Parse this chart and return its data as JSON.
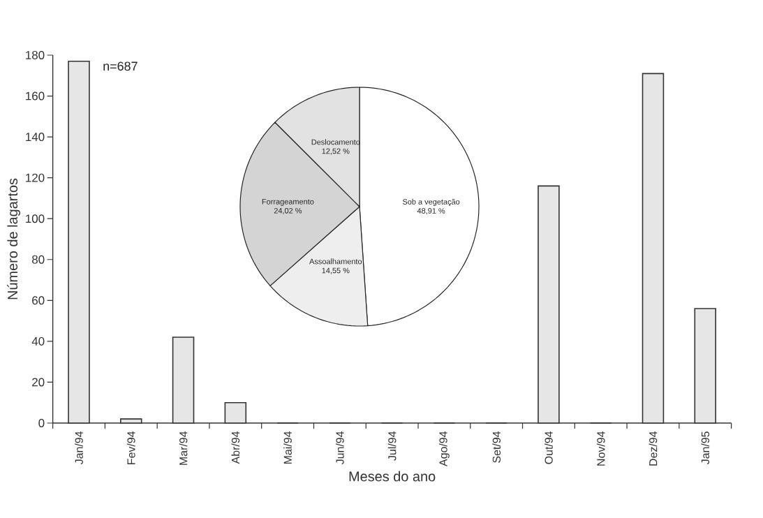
{
  "chart_data": [
    {
      "type": "bar",
      "xlabel": "Meses do ano",
      "ylabel": "Número de lagartos",
      "categories": [
        "Jan/94",
        "Fev/94",
        "Mar/94",
        "Abr/94",
        "Mai/94",
        "Jun/94",
        "Jul/94",
        "Ago/94",
        "Set/94",
        "Out/94",
        "Nov/94",
        "Dez/94",
        "Jan/95"
      ],
      "values": [
        177,
        2,
        42,
        10,
        0,
        0,
        0,
        0,
        0,
        116,
        0,
        171,
        56
      ],
      "color": "#e6e6e6",
      "ylim": [
        0,
        180
      ],
      "yticks": [
        0,
        20,
        40,
        60,
        80,
        100,
        120,
        140,
        160,
        180
      ],
      "annotations": [
        "n=687"
      ]
    },
    {
      "type": "pie",
      "categories": [
        "Sob a vegetação",
        "Assoalhamento",
        "Forrageamento",
        "Deslocamento"
      ],
      "values": [
        48.91,
        14.55,
        24.02,
        12.52
      ],
      "value_labels": [
        "48,91 %",
        "14,55 %",
        "24,02 %",
        "12,52 %"
      ],
      "colors": [
        "#ffffff",
        "#eeeeee",
        "#d4d4d4",
        "#e2e2e2"
      ]
    }
  ]
}
